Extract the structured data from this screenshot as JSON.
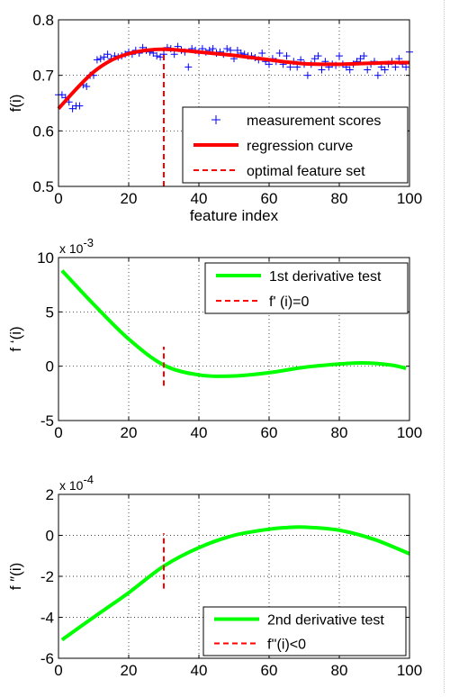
{
  "colors": {
    "measurement": "#0000ff",
    "regression": "#ff0000",
    "optimal": "#ff0000",
    "derivative": "#00ff00"
  },
  "chart_data": [
    {
      "type": "scatter",
      "xlabel": "feature index",
      "ylabel": "f(i)",
      "xlim": [
        0,
        100
      ],
      "ylim": [
        0.5,
        0.8
      ],
      "xticks": [
        "0",
        "20",
        "40",
        "60",
        "80",
        "100"
      ],
      "yticks": [
        "0.5",
        "0.6",
        "0.7",
        "0.8"
      ],
      "grid": true,
      "legend_position": "bottom-right",
      "legend": [
        "measurement scores",
        "regression curve",
        "optimal feature set"
      ],
      "series": [
        {
          "name": "measurement scores",
          "marker": "+",
          "x": [
            0,
            1,
            2,
            3,
            4,
            5,
            6,
            7,
            8,
            9,
            10,
            11,
            12,
            13,
            14,
            15,
            16,
            17,
            18,
            19,
            20,
            21,
            22,
            23,
            24,
            25,
            26,
            27,
            28,
            29,
            30,
            31,
            32,
            33,
            34,
            35,
            36,
            37,
            38,
            39,
            40,
            41,
            42,
            43,
            44,
            45,
            46,
            47,
            48,
            49,
            50,
            51,
            52,
            53,
            54,
            55,
            56,
            57,
            58,
            59,
            60,
            61,
            62,
            63,
            64,
            65,
            66,
            67,
            68,
            69,
            70,
            71,
            72,
            73,
            74,
            75,
            76,
            77,
            78,
            79,
            80,
            81,
            82,
            83,
            84,
            85,
            86,
            87,
            88,
            89,
            90,
            91,
            92,
            93,
            94,
            95,
            96,
            97,
            98,
            99,
            100
          ],
          "y": [
            0.665,
            0.665,
            0.66,
            0.652,
            0.64,
            0.645,
            0.645,
            0.683,
            0.68,
            0.7,
            0.7,
            0.728,
            0.73,
            0.733,
            0.738,
            0.73,
            0.735,
            0.733,
            0.735,
            0.738,
            0.742,
            0.738,
            0.745,
            0.74,
            0.75,
            0.745,
            0.742,
            0.74,
            0.735,
            0.733,
            0.738,
            0.75,
            0.748,
            0.738,
            0.752,
            0.745,
            0.742,
            0.715,
            0.748,
            0.745,
            0.742,
            0.748,
            0.742,
            0.745,
            0.748,
            0.74,
            0.742,
            0.738,
            0.748,
            0.745,
            0.73,
            0.745,
            0.74,
            0.738,
            0.735,
            0.735,
            0.732,
            0.728,
            0.74,
            0.725,
            0.72,
            0.73,
            0.725,
            0.74,
            0.72,
            0.735,
            0.715,
            0.725,
            0.715,
            0.728,
            0.72,
            0.7,
            0.72,
            0.73,
            0.735,
            0.71,
            0.725,
            0.715,
            0.72,
            0.718,
            0.735,
            0.72,
            0.715,
            0.71,
            0.72,
            0.725,
            0.73,
            0.735,
            0.71,
            0.72,
            0.725,
            0.7,
            0.715,
            0.71,
            0.72,
            0.725,
            0.715,
            0.73,
            0.72,
            0.715,
            0.742
          ]
        },
        {
          "name": "regression curve",
          "x": [
            0,
            5,
            10,
            15,
            20,
            25,
            30,
            35,
            40,
            45,
            50,
            55,
            60,
            65,
            70,
            75,
            80,
            85,
            90,
            95,
            100
          ],
          "y": [
            0.64,
            0.675,
            0.706,
            0.727,
            0.739,
            0.745,
            0.747,
            0.745,
            0.742,
            0.739,
            0.736,
            0.732,
            0.728,
            0.724,
            0.721,
            0.72,
            0.72,
            0.721,
            0.722,
            0.723,
            0.723
          ]
        },
        {
          "name": "optimal feature set",
          "x": [
            30,
            30
          ],
          "y": [
            0.5,
            0.747
          ]
        }
      ]
    },
    {
      "type": "line",
      "ylabel": "f ‘(i)",
      "xlim": [
        0,
        100
      ],
      "ylim": [
        -5,
        10
      ],
      "xticks": [
        "0",
        "20",
        "40",
        "60",
        "80",
        "100"
      ],
      "yticks": [
        "-5",
        "0",
        "5",
        "10"
      ],
      "exponent_base": "x 10",
      "exponent_power": "-3",
      "grid": true,
      "legend_position": "top-right",
      "legend": [
        "1st derivative test",
        "f' (i)=0"
      ],
      "series": [
        {
          "name": "1st derivative test",
          "x": [
            1,
            10,
            20,
            30,
            40,
            50,
            60,
            70,
            80,
            87,
            95,
            99
          ],
          "y": [
            8.8,
            5.7,
            2.5,
            0.1,
            -0.8,
            -0.9,
            -0.6,
            -0.1,
            0.2,
            0.3,
            0.1,
            -0.2
          ]
        },
        {
          "name": "f' (i)=0",
          "x": [
            30,
            30
          ],
          "y": [
            -1.8,
            1.8
          ]
        }
      ]
    },
    {
      "type": "line",
      "ylabel": "f ″(i)",
      "xlim": [
        0,
        100
      ],
      "ylim": [
        -6,
        2
      ],
      "xticks": [
        "0",
        "20",
        "40",
        "60",
        "80",
        "100"
      ],
      "yticks": [
        "-6",
        "-4",
        "-2",
        "0",
        "2"
      ],
      "exponent_base": "x 10",
      "exponent_power": "-4",
      "grid": true,
      "legend_position": "bottom-right",
      "legend": [
        "2nd derivative test",
        "f''(i)<0"
      ],
      "series": [
        {
          "name": "2nd derivative test",
          "x": [
            1,
            10,
            20,
            30,
            40,
            50,
            60,
            65,
            70,
            80,
            90,
            100
          ],
          "y": [
            -5.1,
            -4.0,
            -2.8,
            -1.5,
            -0.6,
            0.0,
            0.3,
            0.38,
            0.4,
            0.25,
            -0.2,
            -0.9
          ]
        },
        {
          "name": "f''(i)<0",
          "x": [
            30,
            30
          ],
          "y": [
            -2.6,
            0.1
          ]
        }
      ]
    }
  ]
}
